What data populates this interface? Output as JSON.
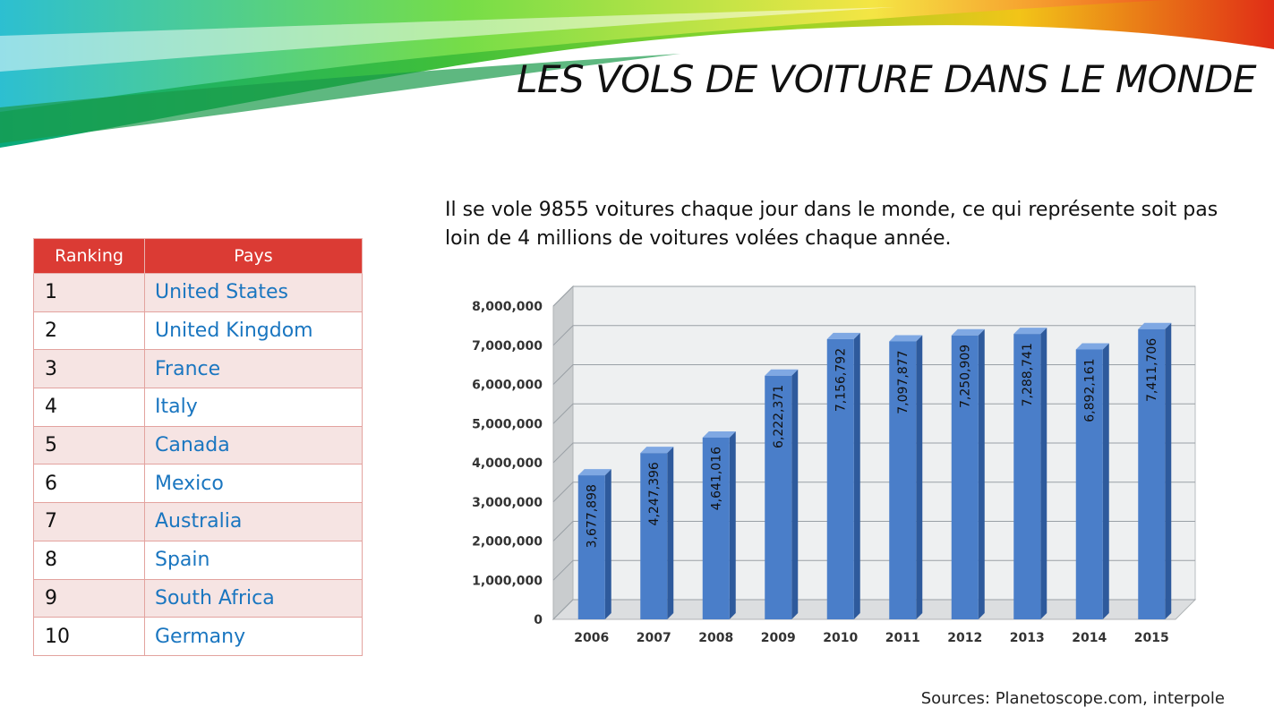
{
  "slide": {
    "title": "LES VOLS DE VOITURE DANS LE MONDE",
    "intro": "Il se vole 9855 voitures chaque jour dans le monde, ce qui représente soit pas loin de 4 millions de voitures volées chaque année.",
    "sources": "Sources: Planetoscope.com, interpole"
  },
  "ranking_table": {
    "headers": [
      "Ranking",
      "Pays"
    ],
    "header_color": "#db3b34",
    "country_color": "#1a76c0",
    "rows": [
      {
        "rank": "1",
        "country": "United States"
      },
      {
        "rank": "2",
        "country": "United Kingdom"
      },
      {
        "rank": "3",
        "country": "France"
      },
      {
        "rank": "4",
        "country": "Italy"
      },
      {
        "rank": "5",
        "country": "Canada"
      },
      {
        "rank": "6",
        "country": "Mexico"
      },
      {
        "rank": "7",
        "country": "Australia"
      },
      {
        "rank": "8",
        "country": "Spain"
      },
      {
        "rank": "9",
        "country": "South Africa"
      },
      {
        "rank": "10",
        "country": "Germany"
      }
    ]
  },
  "chart_data": {
    "type": "bar",
    "style": "3d-column",
    "title": "",
    "xlabel": "",
    "ylabel": "",
    "categories": [
      "2006",
      "2007",
      "2008",
      "2009",
      "2010",
      "2011",
      "2012",
      "2013",
      "2014",
      "2015"
    ],
    "values": [
      3677898,
      4247396,
      4641016,
      6222371,
      7156792,
      7097877,
      7250909,
      7288741,
      6892161,
      7411706
    ],
    "data_labels": [
      "3,677,898",
      "4,247,396",
      "4,641,016",
      "6,222,371",
      "7,156,792",
      "7,097,877",
      "7,250,909",
      "7,288,741",
      "6,892,161",
      "7,411,706"
    ],
    "y_ticks": [
      0,
      1000000,
      2000000,
      3000000,
      4000000,
      5000000,
      6000000,
      7000000,
      8000000
    ],
    "y_tick_labels": [
      "0",
      "1,000,000",
      "2,000,000",
      "3,000,000",
      "4,000,000",
      "5,000,000",
      "6,000,000",
      "7,000,000",
      "8,000,000"
    ],
    "ylim": [
      0,
      8000000
    ],
    "grid": true,
    "legend": "none",
    "bar_color": "#4a7ec9"
  }
}
